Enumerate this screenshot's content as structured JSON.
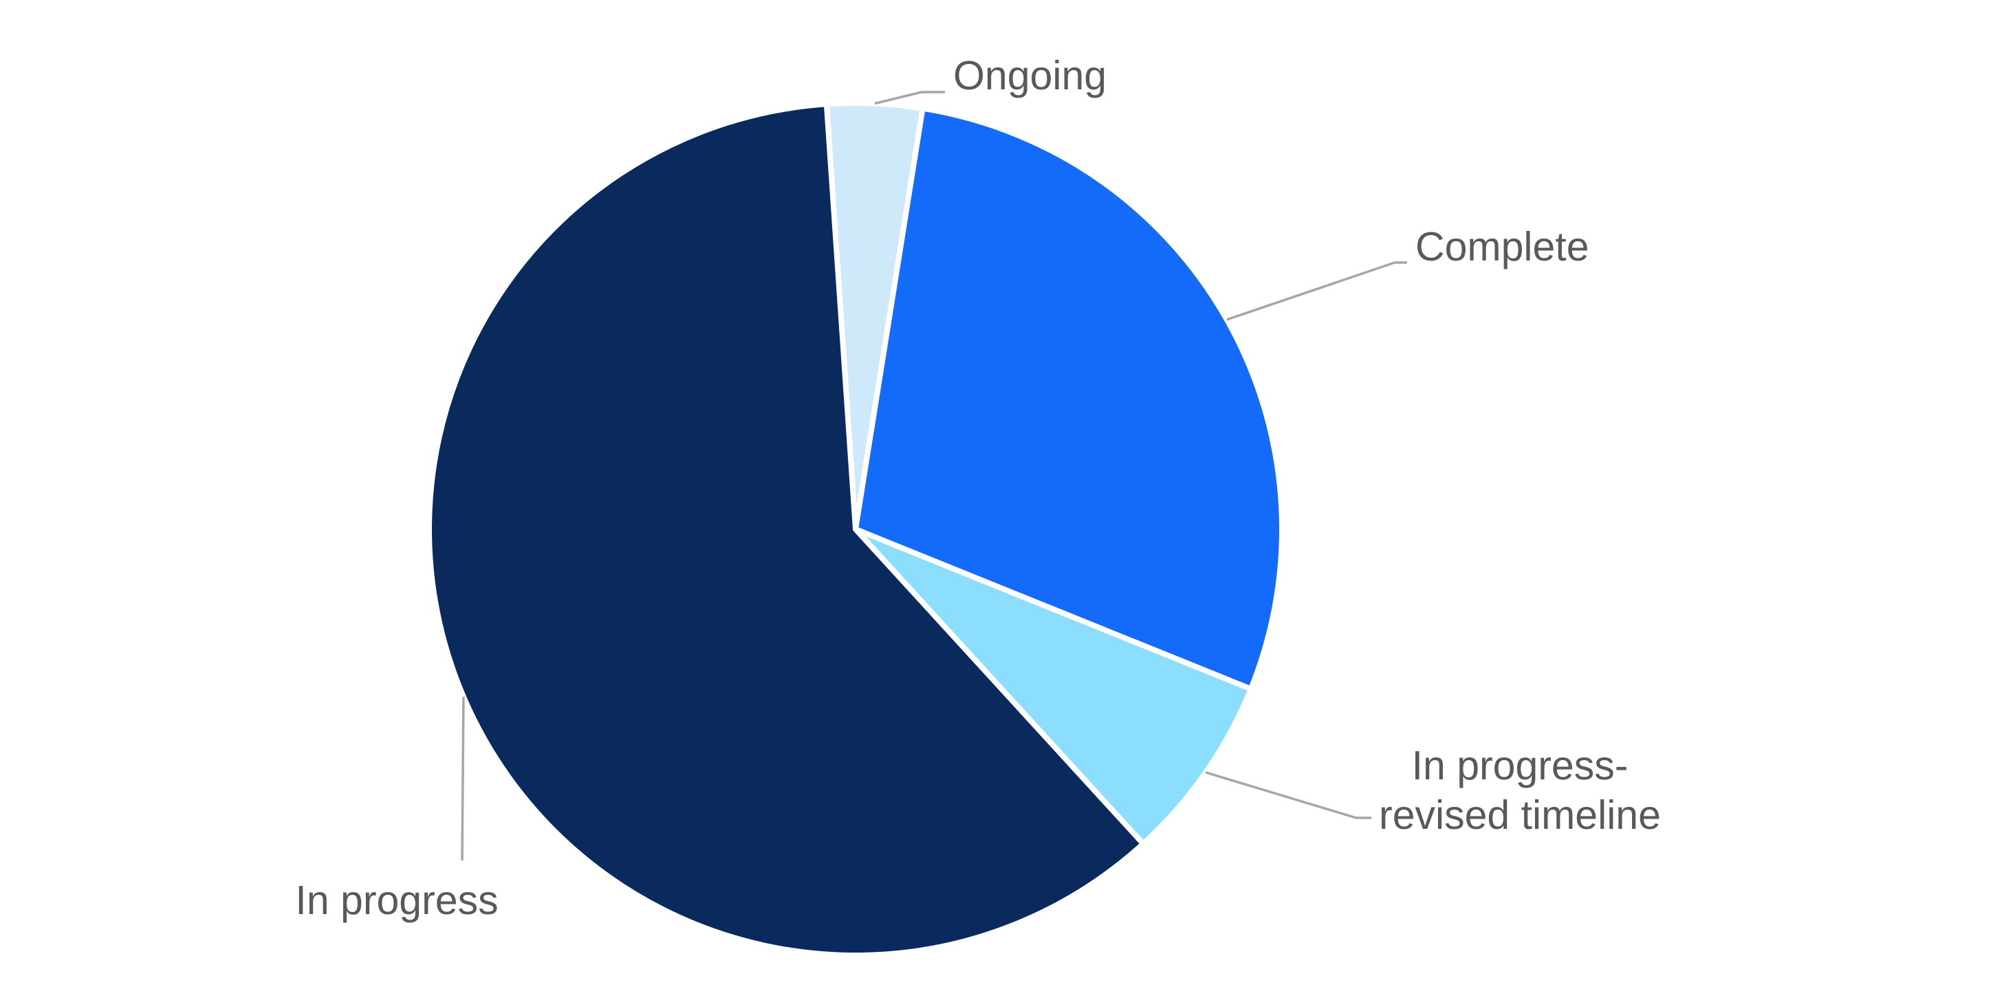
{
  "chart_data": {
    "type": "pie",
    "direction": "clockwise",
    "start_angle_deg": -3.9,
    "legend": "none",
    "background": "#FFFFFF",
    "label_color": "#595959",
    "leader_line_color": "#A6A6A6",
    "slice_border_color": "#FFFFFF",
    "slices": [
      {
        "label": "Ongoing",
        "label_lines": [
          "Ongoing"
        ],
        "percent": 3.6,
        "color": "#CDE9FA"
      },
      {
        "label": "Complete",
        "label_lines": [
          "Complete"
        ],
        "percent": 28.6,
        "color": "#146BFA"
      },
      {
        "label": "In progress- revised timeline",
        "label_lines": [
          "In progress-",
          "revised timeline"
        ],
        "percent": 7.1,
        "color": "#8BDEFD"
      },
      {
        "label": "In progress",
        "label_lines": [
          "In progress"
        ],
        "percent": 60.7,
        "color": "#0A2A5E"
      }
    ]
  }
}
